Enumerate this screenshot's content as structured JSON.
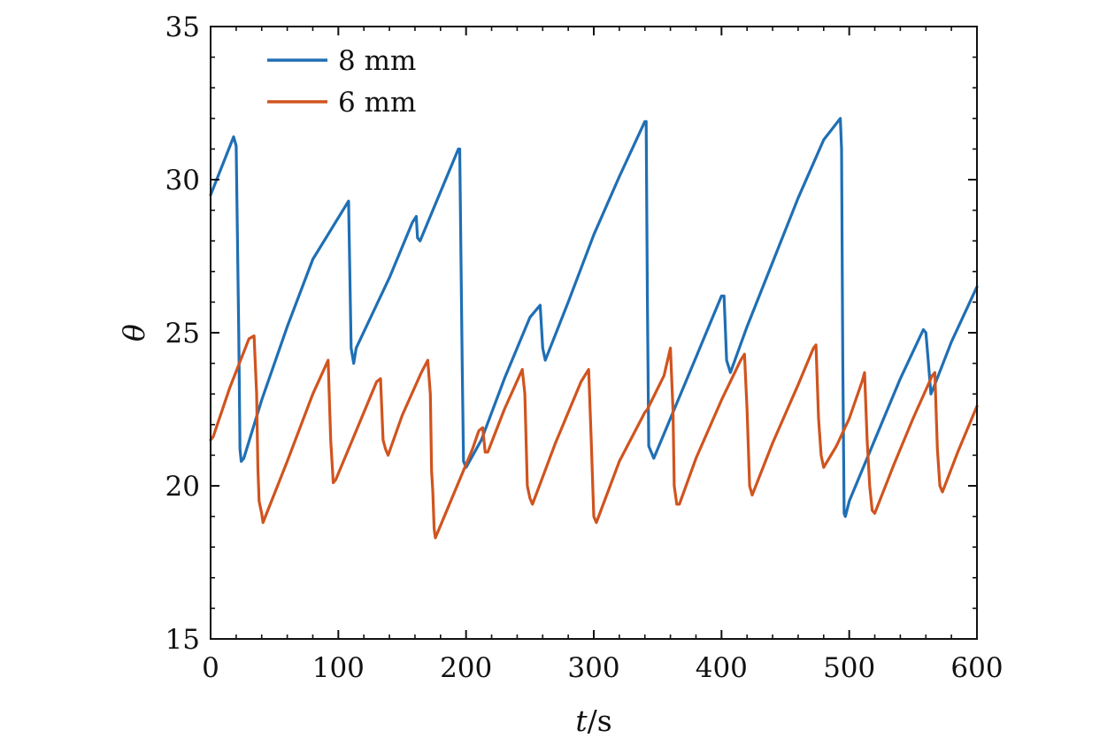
{
  "chart_data": {
    "type": "line",
    "title": "",
    "xlabel_italic": "t",
    "xlabel_rest": "/s",
    "ylabel": "θ",
    "xlim": [
      0,
      600
    ],
    "ylim": [
      15,
      35
    ],
    "x_ticks": [
      0,
      100,
      200,
      300,
      400,
      500,
      600
    ],
    "x_tick_labels": [
      "0",
      "100",
      "200",
      "300",
      "400",
      "500",
      "600"
    ],
    "y_ticks": [
      15,
      20,
      25,
      30,
      35
    ],
    "y_tick_labels": [
      "15",
      "20",
      "25",
      "30",
      "35"
    ],
    "grid": false,
    "legend_position": "top-left",
    "series": [
      {
        "name": "8 mm",
        "color": "#1f6fb4",
        "points": [
          [
            0,
            29.5
          ],
          [
            18,
            31.4
          ],
          [
            20,
            31.1
          ],
          [
            22,
            25.0
          ],
          [
            23,
            21.2
          ],
          [
            24,
            20.8
          ],
          [
            26,
            20.9
          ],
          [
            40,
            22.8
          ],
          [
            60,
            25.2
          ],
          [
            80,
            27.4
          ],
          [
            108,
            29.3
          ],
          [
            110,
            24.5
          ],
          [
            112,
            24.0
          ],
          [
            114,
            24.5
          ],
          [
            140,
            26.8
          ],
          [
            158,
            28.6
          ],
          [
            161,
            28.8
          ],
          [
            162,
            28.1
          ],
          [
            164,
            28.0
          ],
          [
            180,
            29.6
          ],
          [
            194,
            31.0
          ],
          [
            195,
            31.0
          ],
          [
            197,
            24.0
          ],
          [
            198,
            20.8
          ],
          [
            200,
            20.6
          ],
          [
            212,
            21.5
          ],
          [
            230,
            23.5
          ],
          [
            250,
            25.5
          ],
          [
            256,
            25.8
          ],
          [
            258,
            25.9
          ],
          [
            260,
            24.5
          ],
          [
            262,
            24.1
          ],
          [
            280,
            26.0
          ],
          [
            300,
            28.2
          ],
          [
            320,
            30.1
          ],
          [
            340,
            31.9
          ],
          [
            341,
            31.9
          ],
          [
            342,
            26.0
          ],
          [
            343,
            21.3
          ],
          [
            347,
            20.9
          ],
          [
            360,
            22.2
          ],
          [
            380,
            24.2
          ],
          [
            400,
            26.2
          ],
          [
            402,
            26.2
          ],
          [
            404,
            24.1
          ],
          [
            407,
            23.7
          ],
          [
            420,
            25.2
          ],
          [
            440,
            27.3
          ],
          [
            460,
            29.4
          ],
          [
            480,
            31.3
          ],
          [
            493,
            32.0
          ],
          [
            494,
            31.0
          ],
          [
            495,
            24.0
          ],
          [
            496,
            19.1
          ],
          [
            497,
            19.0
          ],
          [
            500,
            19.5
          ],
          [
            520,
            21.5
          ],
          [
            540,
            23.5
          ],
          [
            558,
            25.1
          ],
          [
            560,
            25.0
          ],
          [
            562,
            24.0
          ],
          [
            564,
            23.0
          ],
          [
            566,
            23.2
          ],
          [
            580,
            24.7
          ],
          [
            600,
            26.5
          ]
        ]
      },
      {
        "name": "6 mm",
        "color": "#d0541e",
        "points": [
          [
            0,
            21.5
          ],
          [
            2,
            21.6
          ],
          [
            15,
            23.2
          ],
          [
            30,
            24.8
          ],
          [
            34,
            24.9
          ],
          [
            36,
            23.0
          ],
          [
            37,
            20.6
          ],
          [
            38,
            19.5
          ],
          [
            40,
            19.1
          ],
          [
            41,
            18.8
          ],
          [
            60,
            20.8
          ],
          [
            80,
            23.0
          ],
          [
            92,
            24.1
          ],
          [
            94,
            21.5
          ],
          [
            96,
            20.1
          ],
          [
            98,
            20.2
          ],
          [
            115,
            21.9
          ],
          [
            130,
            23.4
          ],
          [
            133,
            23.5
          ],
          [
            135,
            21.5
          ],
          [
            137,
            21.2
          ],
          [
            139,
            21.0
          ],
          [
            150,
            22.3
          ],
          [
            165,
            23.7
          ],
          [
            170,
            24.1
          ],
          [
            172,
            23.0
          ],
          [
            173,
            20.5
          ],
          [
            174,
            19.8
          ],
          [
            175,
            18.6
          ],
          [
            176,
            18.3
          ],
          [
            190,
            19.7
          ],
          [
            205,
            21.2
          ],
          [
            210,
            21.8
          ],
          [
            213,
            21.9
          ],
          [
            215,
            21.1
          ],
          [
            217,
            21.1
          ],
          [
            230,
            22.5
          ],
          [
            244,
            23.8
          ],
          [
            246,
            23.0
          ],
          [
            248,
            20.0
          ],
          [
            250,
            19.6
          ],
          [
            252,
            19.4
          ],
          [
            270,
            21.4
          ],
          [
            290,
            23.4
          ],
          [
            296,
            23.8
          ],
          [
            298,
            21.5
          ],
          [
            300,
            19.0
          ],
          [
            302,
            18.8
          ],
          [
            320,
            20.8
          ],
          [
            340,
            22.4
          ],
          [
            342,
            22.5
          ],
          [
            355,
            23.6
          ],
          [
            360,
            24.5
          ],
          [
            362,
            22.5
          ],
          [
            363,
            20.0
          ],
          [
            365,
            19.4
          ],
          [
            367,
            19.4
          ],
          [
            380,
            20.9
          ],
          [
            400,
            22.8
          ],
          [
            415,
            24.1
          ],
          [
            418,
            24.3
          ],
          [
            420,
            22.5
          ],
          [
            422,
            20.0
          ],
          [
            424,
            19.7
          ],
          [
            440,
            21.4
          ],
          [
            460,
            23.3
          ],
          [
            472,
            24.5
          ],
          [
            474,
            24.6
          ],
          [
            476,
            22.2
          ],
          [
            478,
            21.0
          ],
          [
            480,
            20.6
          ],
          [
            490,
            21.3
          ],
          [
            500,
            22.2
          ],
          [
            510,
            23.4
          ],
          [
            512,
            23.7
          ],
          [
            514,
            21.5
          ],
          [
            516,
            20.0
          ],
          [
            518,
            19.2
          ],
          [
            520,
            19.1
          ],
          [
            535,
            20.7
          ],
          [
            550,
            22.2
          ],
          [
            565,
            23.6
          ],
          [
            567,
            23.7
          ],
          [
            569,
            21.2
          ],
          [
            571,
            20.0
          ],
          [
            573,
            19.8
          ],
          [
            585,
            21.1
          ],
          [
            600,
            22.6
          ]
        ]
      }
    ]
  }
}
